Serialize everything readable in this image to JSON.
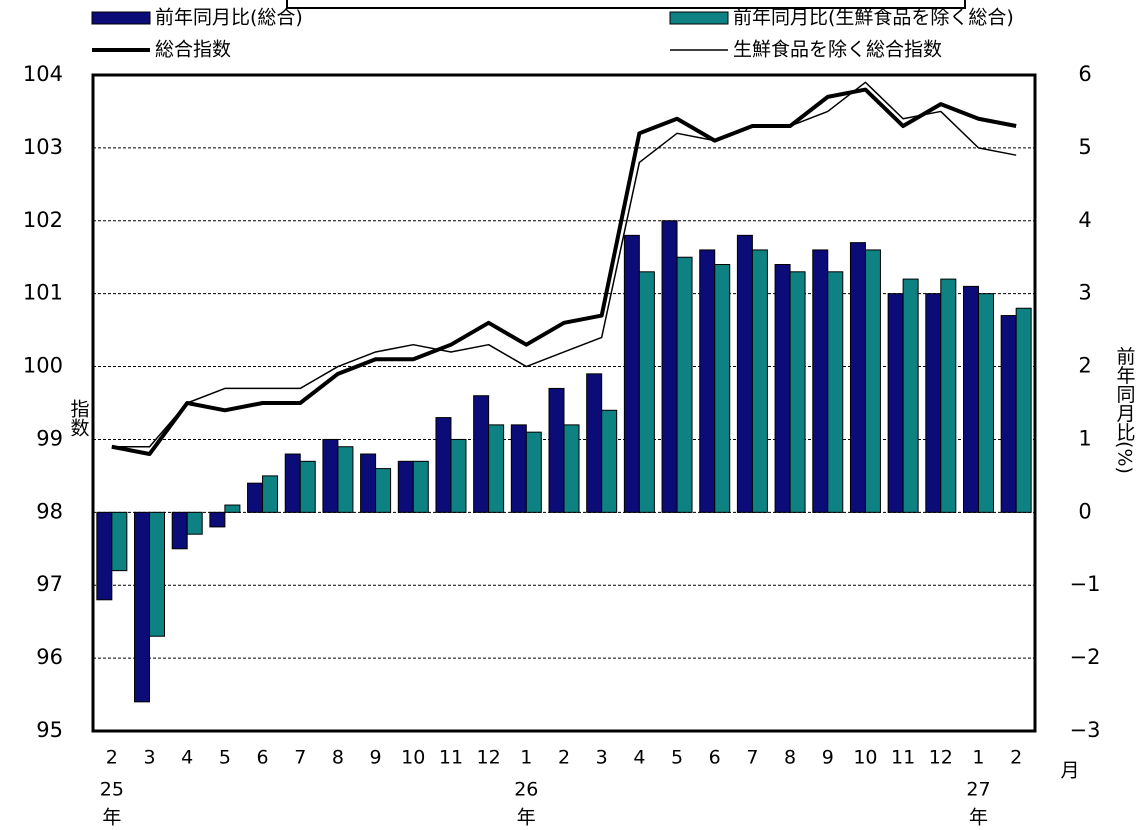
{
  "chart_data": {
    "type": "bar_line",
    "categories": [
      "2",
      "3",
      "4",
      "5",
      "6",
      "7",
      "8",
      "9",
      "10",
      "11",
      "12",
      "1",
      "2",
      "3",
      "4",
      "5",
      "6",
      "7",
      "8",
      "9",
      "10",
      "11",
      "12",
      "1",
      "2"
    ],
    "category_years": [
      "25",
      null,
      null,
      null,
      null,
      null,
      null,
      null,
      null,
      null,
      null,
      "26",
      null,
      null,
      null,
      null,
      null,
      null,
      null,
      null,
      null,
      null,
      null,
      "27",
      null
    ],
    "x_year_unit": "年",
    "x_unit": "月",
    "ylabel": "指数",
    "y2label": "前年同月比(%)",
    "ylim": [
      95,
      104
    ],
    "yticks": [
      95,
      96,
      97,
      98,
      99,
      100,
      101,
      102,
      103,
      104
    ],
    "y2lim": [
      -3,
      6
    ],
    "y2ticks": [
      {
        "value": -3,
        "label": "−3"
      },
      {
        "value": -2,
        "label": "−2"
      },
      {
        "value": -1,
        "label": "−1"
      },
      0,
      1,
      2,
      3,
      4,
      5,
      6
    ],
    "grid": true,
    "series": [
      {
        "name": "前年同月比(総合)",
        "kind": "bar",
        "axis": "y2",
        "color": "#0c0c78",
        "values": [
          -1.2,
          -2.6,
          -0.5,
          -0.2,
          0.4,
          0.8,
          1.0,
          0.8,
          0.7,
          1.3,
          1.6,
          1.2,
          1.7,
          1.9,
          3.8,
          4.0,
          3.6,
          3.8,
          3.4,
          3.6,
          3.7,
          3.0,
          3.0,
          3.1,
          2.7
        ]
      },
      {
        "name": "前年同月比(生鮮食品を除く総合)",
        "kind": "bar",
        "axis": "y2",
        "color": "#0e8282",
        "values": [
          -0.8,
          -1.7,
          -0.3,
          0.1,
          0.5,
          0.7,
          0.9,
          0.6,
          0.7,
          1.0,
          1.2,
          1.1,
          1.2,
          1.4,
          3.3,
          3.5,
          3.4,
          3.6,
          3.3,
          3.3,
          3.6,
          3.2,
          3.2,
          3.0,
          2.8
        ]
      },
      {
        "name": "総合指数",
        "kind": "line",
        "color": "#000000",
        "width": 4,
        "values": [
          98.9,
          98.8,
          99.5,
          99.4,
          99.5,
          99.5,
          99.9,
          100.1,
          100.1,
          100.3,
          100.6,
          100.3,
          100.6,
          100.7,
          103.2,
          103.4,
          103.1,
          103.3,
          103.3,
          103.7,
          103.8,
          103.3,
          103.6,
          103.4,
          103.3
        ]
      },
      {
        "name": "生鮮食品を除く総合指数",
        "kind": "line",
        "color": "#000000",
        "width": 1.5,
        "values": [
          98.9,
          98.9,
          99.5,
          99.7,
          99.7,
          99.7,
          100.0,
          100.2,
          100.3,
          100.2,
          100.3,
          100.0,
          100.2,
          100.4,
          102.8,
          103.2,
          103.1,
          103.3,
          103.3,
          103.5,
          103.9,
          103.4,
          103.5,
          103.0,
          102.9
        ]
      }
    ]
  }
}
